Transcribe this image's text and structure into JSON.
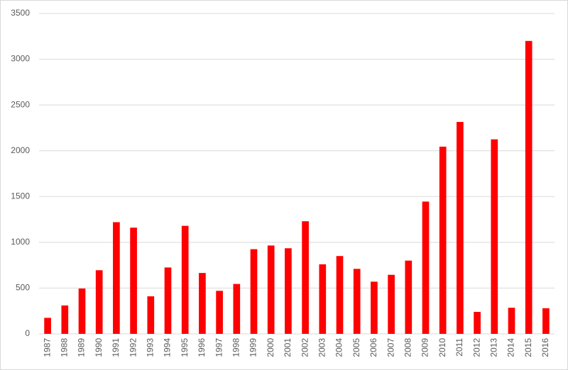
{
  "chart_data": {
    "type": "bar",
    "categories": [
      "1987",
      "1988",
      "1989",
      "1990",
      "1991",
      "1992",
      "1993",
      "1994",
      "1995",
      "1996",
      "1997",
      "1998",
      "1999",
      "2000",
      "2001",
      "2002",
      "2003",
      "2004",
      "2005",
      "2006",
      "2007",
      "2008",
      "2009",
      "2010",
      "2011",
      "2012",
      "2013",
      "2014",
      "2015",
      "2016"
    ],
    "values": [
      175,
      310,
      495,
      695,
      1220,
      1160,
      410,
      725,
      1180,
      665,
      470,
      545,
      925,
      965,
      935,
      1230,
      760,
      850,
      710,
      570,
      645,
      800,
      1445,
      2045,
      2315,
      240,
      2125,
      285,
      3200,
      280
    ],
    "color": "#ff0000",
    "ylim": [
      0,
      3500
    ],
    "yticks": [
      0,
      500,
      1000,
      1500,
      2000,
      2500,
      3000,
      3500
    ],
    "grid": true
  }
}
